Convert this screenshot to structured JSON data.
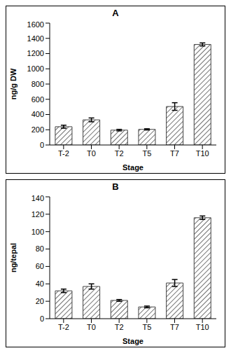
{
  "chart_data": [
    {
      "type": "bar",
      "title": "A",
      "x_label": "Stage",
      "y_label": "ng/g DW",
      "categories": [
        "T-2",
        "T0",
        "T2",
        "T5",
        "T7",
        "T10"
      ],
      "values": [
        240,
        330,
        195,
        205,
        505,
        1320
      ],
      "errors": [
        20,
        25,
        10,
        8,
        50,
        20
      ],
      "color": "#444444",
      "ylim": [
        0,
        1600
      ],
      "yticks": [
        0,
        200,
        400,
        600,
        800,
        1000,
        1200,
        1400,
        1600
      ],
      "grid": false
    },
    {
      "type": "bar",
      "title": "B",
      "x_label": "Stage",
      "y_label": "ng/tepal",
      "categories": [
        "T-2",
        "T0",
        "T2",
        "T5",
        "T7",
        "T10"
      ],
      "values": [
        32,
        37,
        21,
        13.5,
        41,
        116
      ],
      "errors": [
        2,
        3,
        1,
        1,
        4,
        2
      ],
      "color": "#444444",
      "ylim": [
        0,
        140
      ],
      "yticks": [
        0,
        20,
        40,
        60,
        80,
        100,
        120,
        140
      ],
      "grid": false
    }
  ]
}
